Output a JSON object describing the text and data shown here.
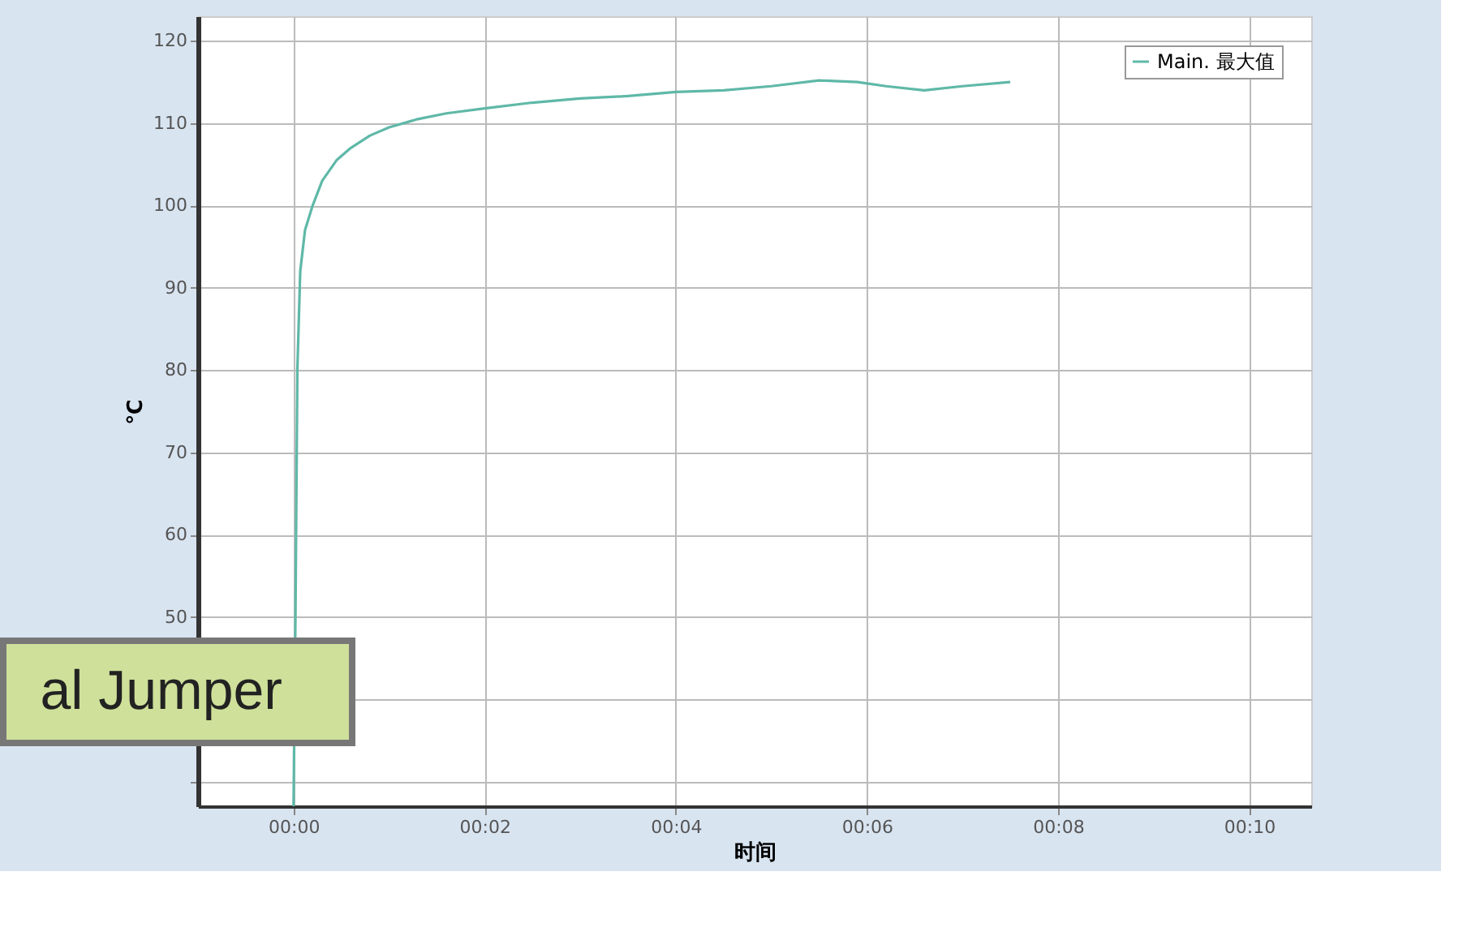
{
  "chart_data": {
    "type": "line",
    "xlabel": "时间",
    "ylabel": "℃",
    "x": [
      0,
      0.02,
      0.04,
      0.07,
      0.12,
      0.2,
      0.3,
      0.45,
      0.6,
      0.8,
      1.0,
      1.3,
      1.6,
      2.0,
      2.5,
      3.0,
      3.5,
      4.0,
      4.5,
      5.0,
      5.5,
      5.9,
      6.2,
      6.6,
      7.0,
      7.5
    ],
    "series": [
      {
        "name": "Main. 最大值",
        "color": "#5fb8a8",
        "values": [
          27,
          50,
          80,
          92,
          97,
          100,
          103,
          105.5,
          107,
          108.5,
          109.5,
          110.5,
          111.2,
          111.8,
          112.5,
          113,
          113.3,
          113.8,
          114,
          114.5,
          115.2,
          115,
          114.5,
          114,
          114.5,
          115
        ]
      }
    ],
    "xlim": [
      -1,
      10.65
    ],
    "ylim": [
      27,
      123
    ],
    "xticks": [
      {
        "value": 0,
        "label": "00:00"
      },
      {
        "value": 2,
        "label": "00:02"
      },
      {
        "value": 4,
        "label": "00:04"
      },
      {
        "value": 6,
        "label": "00:06"
      },
      {
        "value": 8,
        "label": "00:08"
      },
      {
        "value": 10,
        "label": "00:10"
      }
    ],
    "yticks": [
      {
        "value": 30,
        "label": null
      },
      {
        "value": 40,
        "label": null
      },
      50,
      60,
      70,
      80,
      90,
      100,
      110,
      120
    ],
    "grid": true,
    "legend": "top right",
    "marker": "none",
    "line_style": "solid",
    "annotations": [
      "al Jumper"
    ]
  }
}
